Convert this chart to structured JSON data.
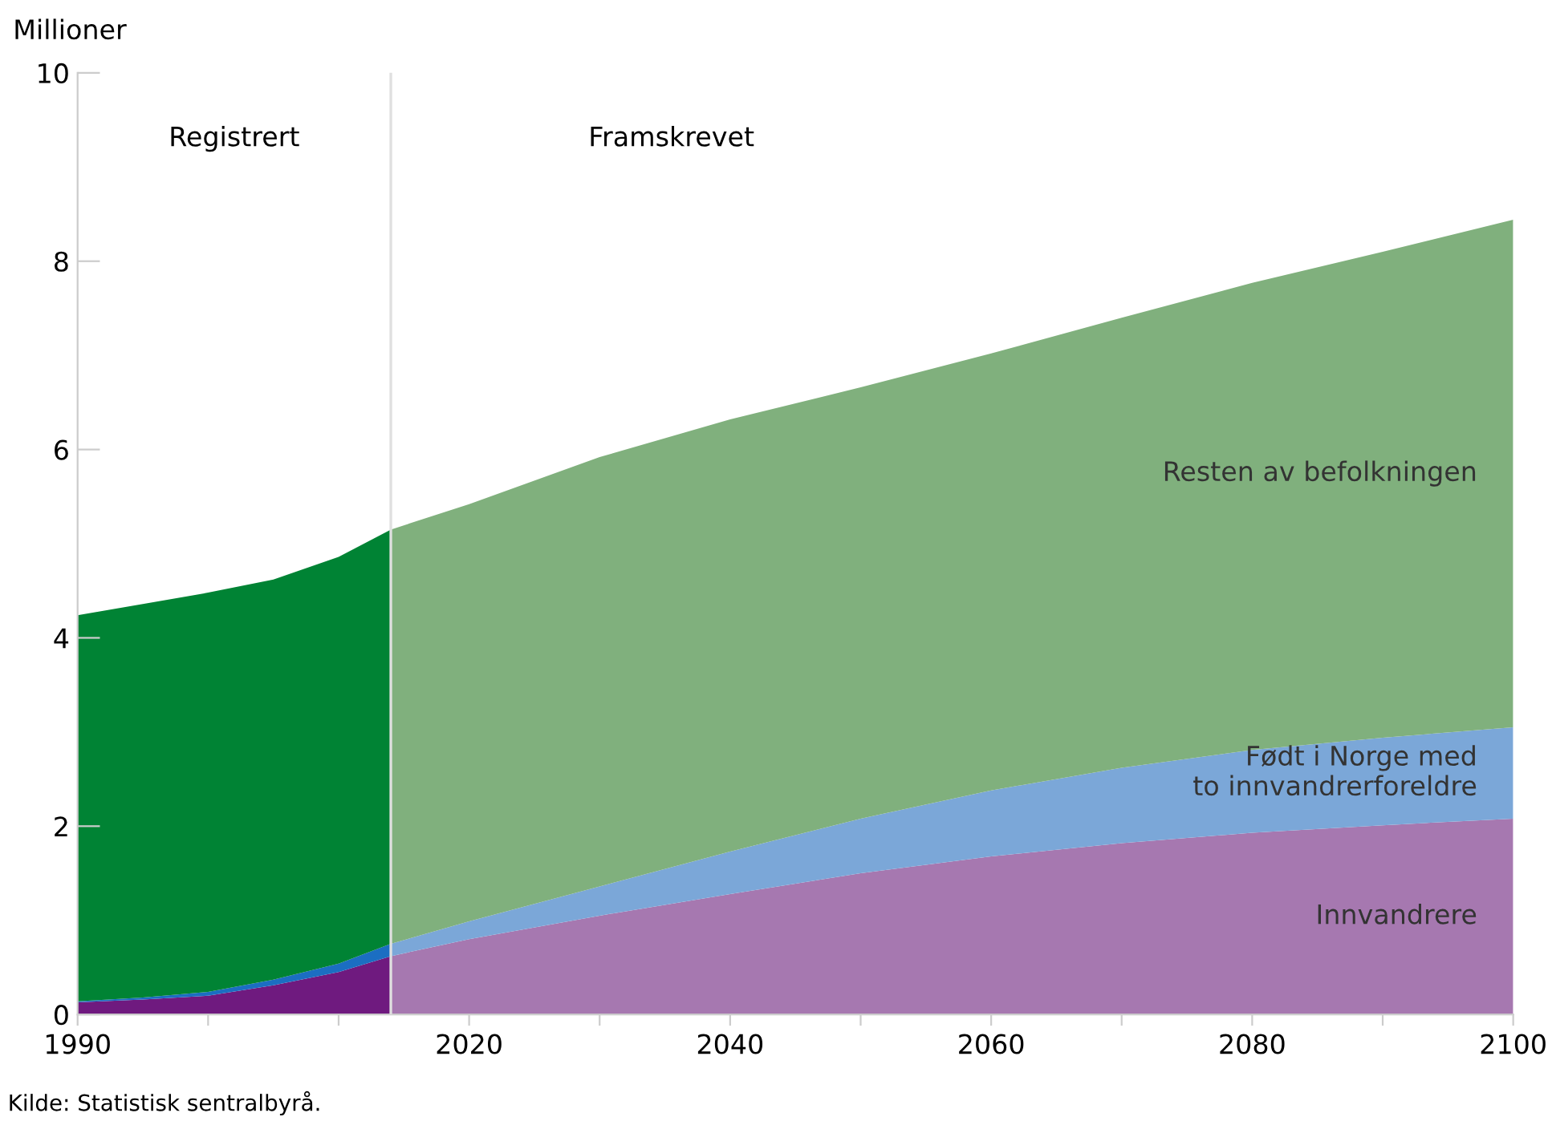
{
  "chart_data": {
    "type": "area",
    "stacked": true,
    "ylabel": "Millioner",
    "annotations": [
      "Registrert",
      "Framskrevet",
      "Kilde: Statistisk sentralbyrå."
    ],
    "x": [
      1990,
      1995,
      2000,
      2005,
      2010,
      2014,
      2014,
      2020,
      2030,
      2040,
      2050,
      2060,
      2070,
      2080,
      2090,
      2100
    ],
    "xlim": [
      1990,
      2100
    ],
    "ylim": [
      0,
      10
    ],
    "xticks": [
      1990,
      {
        "value": 2000,
        "label": null
      },
      {
        "value": 2010,
        "label": null
      },
      2020,
      {
        "value": 2030,
        "label": null
      },
      2040,
      {
        "value": 2050,
        "label": null
      },
      2060,
      {
        "value": 2070,
        "label": null
      },
      2080,
      {
        "value": 2090,
        "label": null
      },
      2100
    ],
    "yticks": [
      0,
      2,
      4,
      6,
      8,
      10
    ],
    "grid": false,
    "legend": false,
    "ref_lines": [
      {
        "axis": "x",
        "value": 2014,
        "color": "#e0e0e0"
      }
    ],
    "series": [
      {
        "color": "#6f1a7f",
        "values": [
          0.13,
          0.16,
          0.2,
          0.31,
          0.45,
          0.62,
          null,
          null,
          null,
          null,
          null,
          null,
          null,
          null,
          null,
          null
        ]
      },
      {
        "color": "#1b6ec2",
        "values": [
          0.01,
          0.02,
          0.04,
          0.06,
          0.09,
          0.13,
          null,
          null,
          null,
          null,
          null,
          null,
          null,
          null,
          null,
          null
        ]
      },
      {
        "color": "#008334",
        "values": [
          4.1,
          4.18,
          4.24,
          4.25,
          4.32,
          4.4,
          null,
          null,
          null,
          null,
          null,
          null,
          null,
          null,
          null,
          null
        ]
      },
      {
        "name": "Innvandrere",
        "color": "#a678b0",
        "values": [
          null,
          null,
          null,
          null,
          null,
          null,
          0.62,
          0.8,
          1.05,
          1.28,
          1.5,
          1.68,
          1.82,
          1.93,
          2.01,
          2.08
        ]
      },
      {
        "name": "Født i Norge med\nto innvandrerforeldre",
        "color": "#7ba7d8",
        "values": [
          null,
          null,
          null,
          null,
          null,
          null,
          0.13,
          0.19,
          0.31,
          0.45,
          0.58,
          0.7,
          0.8,
          0.88,
          0.93,
          0.97
        ]
      },
      {
        "name": "Resten av befolkningen",
        "color": "#80b07d",
        "values": [
          null,
          null,
          null,
          null,
          null,
          null,
          4.4,
          4.43,
          4.56,
          4.59,
          4.58,
          4.64,
          4.78,
          4.96,
          5.16,
          5.39
        ]
      }
    ]
  }
}
